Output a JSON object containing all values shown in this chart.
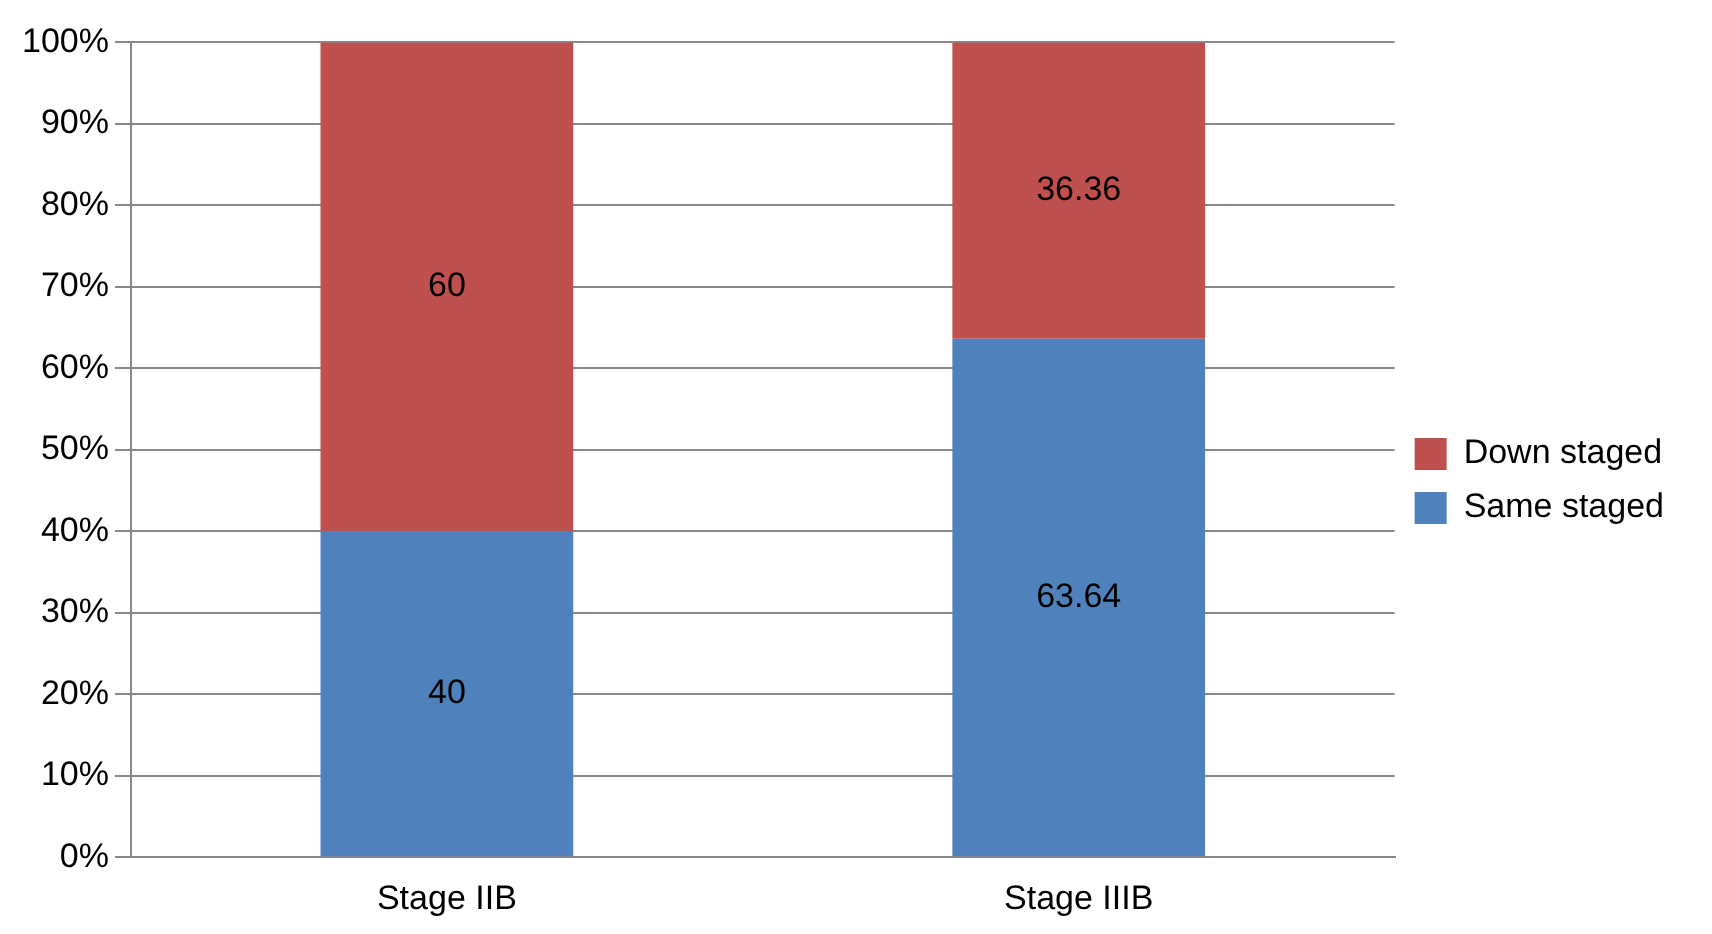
{
  "chart_data": {
    "type": "bar",
    "stacked": true,
    "categories": [
      "Stage IIB",
      "Stage IIIB"
    ],
    "series": [
      {
        "name": "Same staged",
        "color": "#4f81bd",
        "values": [
          40,
          63.64
        ]
      },
      {
        "name": "Down staged",
        "color": "#c0504d",
        "values": [
          60,
          36.36
        ]
      }
    ],
    "ylim": [
      0,
      100
    ],
    "yticks": [
      {
        "value": 0,
        "label": "0%"
      },
      {
        "value": 10,
        "label": "10%"
      },
      {
        "value": 20,
        "label": "20%"
      },
      {
        "value": 30,
        "label": "30%"
      },
      {
        "value": 40,
        "label": "40%"
      },
      {
        "value": 50,
        "label": "50%"
      },
      {
        "value": 60,
        "label": "60%"
      },
      {
        "value": 70,
        "label": "70%"
      },
      {
        "value": 80,
        "label": "80%"
      },
      {
        "value": 90,
        "label": "90%"
      },
      {
        "value": 100,
        "label": "100%"
      }
    ],
    "grid": "y",
    "legend": "right",
    "data_labels": true
  }
}
